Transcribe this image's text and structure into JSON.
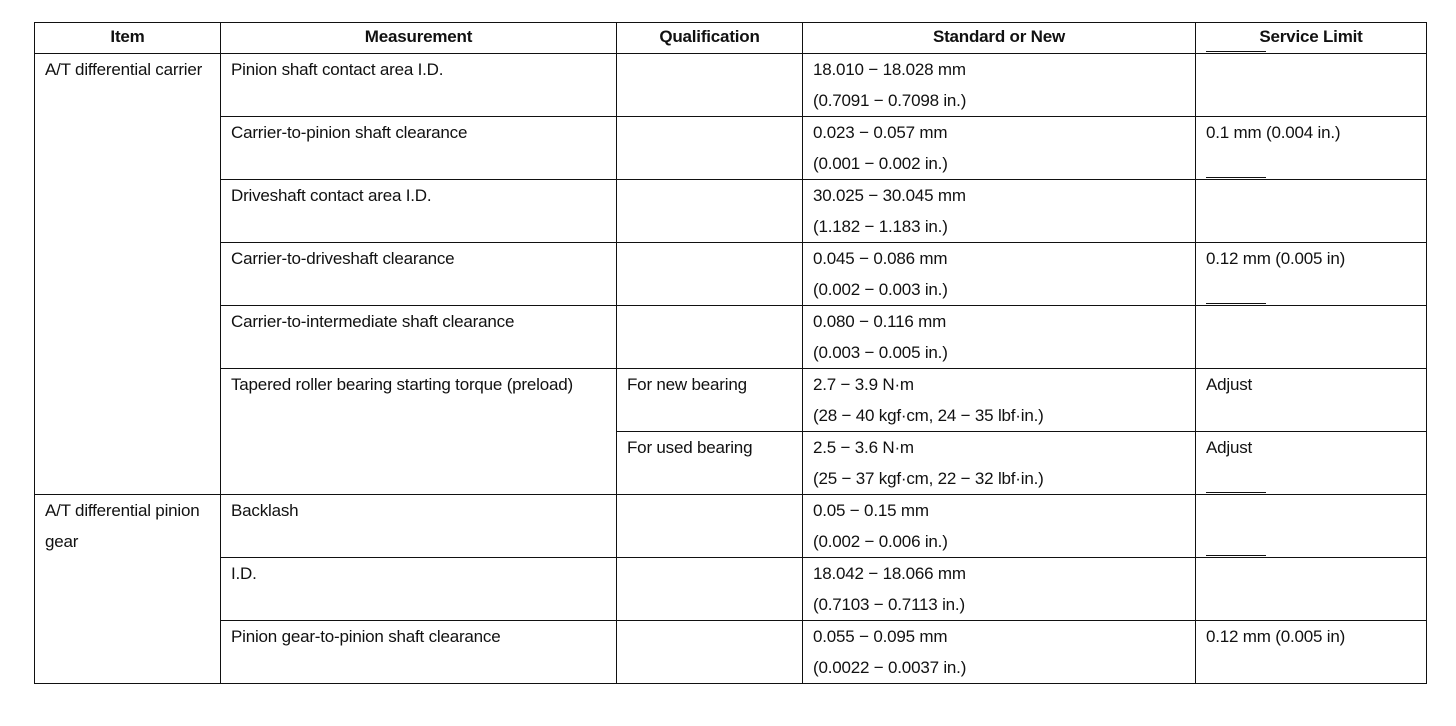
{
  "headers": {
    "item": "Item",
    "measurement": "Measurement",
    "qualification": "Qualification",
    "standard": "Standard or New",
    "limit": "Service Limit"
  },
  "groups": [
    {
      "item": "A/T differential carrier",
      "rows": [
        {
          "measurement": "Pinion shaft contact area I.D.",
          "qualification": "",
          "standard": [
            "18.010 − 18.028 mm",
            "(0.7091 − 0.7098 in.)"
          ],
          "limit": "——"
        },
        {
          "measurement": "Carrier-to-pinion shaft clearance",
          "qualification": "",
          "standard": [
            "0.023 − 0.057 mm",
            "(0.001 − 0.002 in.)"
          ],
          "limit": "0.1 mm (0.004 in.)"
        },
        {
          "measurement": "Driveshaft contact area I.D.",
          "qualification": "",
          "standard": [
            "30.025 − 30.045 mm",
            "(1.182 − 1.183 in.)"
          ],
          "limit": "——"
        },
        {
          "measurement": "Carrier-to-driveshaft clearance",
          "qualification": "",
          "standard": [
            "0.045 − 0.086 mm",
            "(0.002 − 0.003 in.)"
          ],
          "limit": "0.12 mm (0.005 in)"
        },
        {
          "measurement": "Carrier-to-intermediate shaft clearance",
          "qualification": "",
          "standard": [
            "0.080 − 0.116 mm",
            "(0.003 − 0.005 in.)"
          ],
          "limit": "——"
        },
        {
          "measurement": "Tapered roller bearing starting torque (preload)",
          "qualification": "For new bearing",
          "standard": [
            "2.7 − 3.9 N·m",
            "(28 − 40 kgf·cm, 24 − 35 lbf·in.)"
          ],
          "limit": "Adjust"
        },
        {
          "qualification": "For used bearing",
          "standard": [
            "2.5 − 3.6 N·m",
            "(25 − 37 kgf·cm, 22 − 32 lbf·in.)"
          ],
          "limit": "Adjust"
        }
      ]
    },
    {
      "item": "A/T differential pinion gear",
      "rows": [
        {
          "measurement": "Backlash",
          "qualification": "",
          "standard": [
            "0.05 − 0.15 mm",
            "(0.002 − 0.006 in.)"
          ],
          "limit": "——"
        },
        {
          "measurement": "I.D.",
          "qualification": "",
          "standard": [
            "18.042 − 18.066 mm",
            "(0.7103 − 0.7113 in.)"
          ],
          "limit": "——"
        },
        {
          "measurement": "Pinion gear-to-pinion shaft clearance",
          "qualification": "",
          "standard": [
            "0.055 − 0.095 mm",
            "(0.0022 − 0.0037 in.)"
          ],
          "limit": "0.12 mm (0.005 in)"
        }
      ]
    }
  ]
}
